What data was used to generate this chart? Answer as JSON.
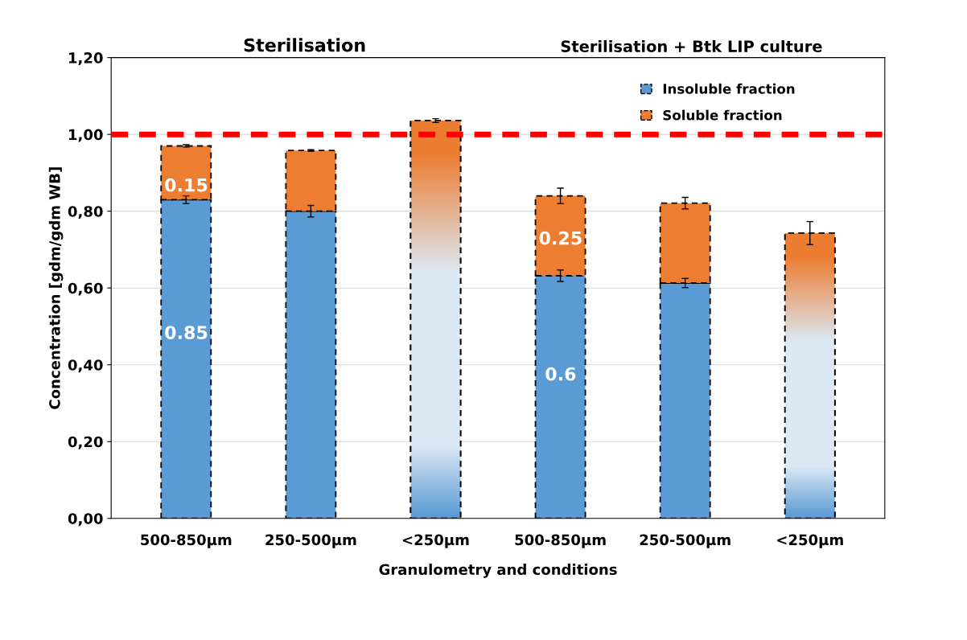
{
  "chart_data": {
    "type": "bar",
    "stacked": true,
    "xlabel": "Granulometry and conditions",
    "ylabel": "Concentration [gdm/gdm WB]",
    "categories": [
      "500-850µm",
      "250-500µm",
      "<250µm",
      "500-850µm",
      "250-500µm",
      "<250µm"
    ],
    "series": [
      {
        "name": "Insoluble fraction",
        "color": "#5b9bd5",
        "values": [
          0.83,
          0.8,
          null,
          0.632,
          0.613,
          null
        ],
        "errors": [
          0.01,
          0.015,
          null,
          0.015,
          0.012,
          null
        ]
      },
      {
        "name": "Soluble fraction",
        "color": "#ed7d31",
        "values": [
          0.14,
          0.158,
          null,
          0.208,
          0.208,
          null
        ],
        "errors": [
          0.003,
          0.002,
          null,
          0.02,
          0.015,
          null
        ]
      },
      {
        "color": "#dce9f5",
        "values": [
          null,
          null,
          1.036,
          null,
          null,
          0.743
        ],
        "errors": [
          null,
          null,
          0.005,
          null,
          null,
          0.03
        ]
      }
    ],
    "ylim": [
      0,
      1.2
    ],
    "yticks": [
      {
        "value": 0,
        "label": "0,00"
      },
      {
        "value": 0.2,
        "label": "0,20"
      },
      {
        "value": 0.4,
        "label": "0,40"
      },
      {
        "value": 0.6,
        "label": "0,60"
      },
      {
        "value": 0.8,
        "label": "0,80"
      },
      {
        "value": 1.0,
        "label": "1,00"
      },
      {
        "value": 1.2,
        "label": "1,20"
      }
    ],
    "ref_lines": [
      {
        "axis": "y",
        "value": 1.0,
        "color": "#ff0000",
        "line_style": "dashed"
      }
    ],
    "annotations": [
      "Sterilisation",
      "Sterilisation + Btk LIP culture",
      "0.15",
      "0.85",
      "0.25",
      "0.6"
    ],
    "grid": "y",
    "legend": "top right"
  }
}
